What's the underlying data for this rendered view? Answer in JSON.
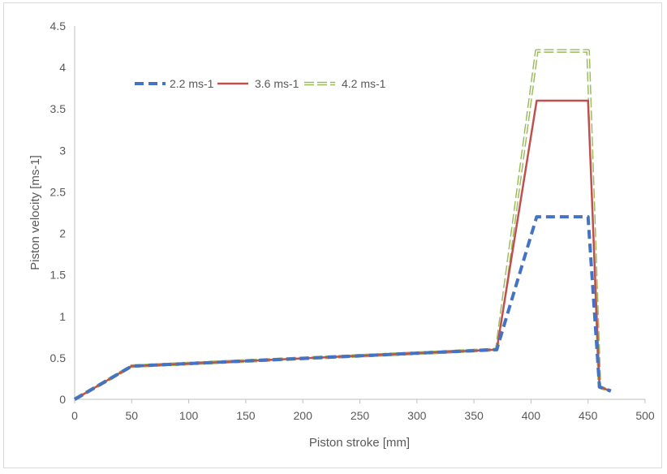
{
  "chart_data": {
    "type": "line",
    "title": "",
    "xlabel": "Piston stroke [mm]",
    "ylabel": "Piston velocity [ms-1]",
    "xlim": [
      0,
      500
    ],
    "ylim": [
      0,
      4.5
    ],
    "xticks": [
      "0",
      "50",
      "100",
      "150",
      "200",
      "250",
      "300",
      "350",
      "400",
      "450",
      "500"
    ],
    "yticks": [
      "0",
      "0.5",
      "1",
      "1.5",
      "2",
      "2.5",
      "3",
      "3.5",
      "4",
      "4.5"
    ],
    "grid": false,
    "legend_position": "top-left",
    "series": [
      {
        "name": "2.2 ms-1",
        "color": "#4472c4",
        "style": "dashed",
        "points": [
          [
            0,
            0
          ],
          [
            50,
            0.4
          ],
          [
            370,
            0.6
          ],
          [
            405,
            2.2
          ],
          [
            450,
            2.2
          ],
          [
            460,
            0.15
          ],
          [
            470,
            0.1
          ]
        ]
      },
      {
        "name": "3.6 ms-1",
        "color": "#c0504d",
        "style": "solid",
        "points": [
          [
            0,
            0
          ],
          [
            50,
            0.4
          ],
          [
            370,
            0.6
          ],
          [
            405,
            3.6
          ],
          [
            450,
            3.6
          ],
          [
            460,
            0.15
          ],
          [
            470,
            0.1
          ]
        ]
      },
      {
        "name": "4.2 ms-1",
        "color": "#9bbb59",
        "style": "double-dashed",
        "points": [
          [
            0,
            0
          ],
          [
            50,
            0.4
          ],
          [
            370,
            0.6
          ],
          [
            405,
            4.2
          ],
          [
            450,
            4.2
          ],
          [
            460,
            0.15
          ],
          [
            470,
            0.1
          ]
        ]
      }
    ]
  }
}
